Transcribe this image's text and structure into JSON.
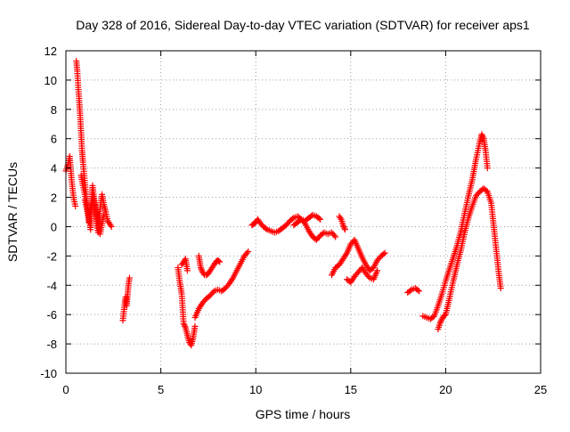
{
  "chart_data": {
    "type": "scatter",
    "title": "Day 328 of 2016, Sidereal Day-to-day VTEC variation (SDTVAR) for receiver aps1",
    "xlabel": "GPS time / hours",
    "ylabel": "SDTVAR / TECUs",
    "xlim": [
      0,
      25
    ],
    "ylim": [
      -10,
      12
    ],
    "xticks": [
      0,
      5,
      10,
      15,
      20,
      25
    ],
    "yticks": [
      -10,
      -8,
      -6,
      -4,
      -2,
      0,
      2,
      4,
      6,
      8,
      10,
      12
    ],
    "grid": true,
    "marker": "plus",
    "color": "#ff0000",
    "series": [
      {
        "name": "SDTVAR",
        "segments": [
          {
            "x": [
              0.0,
              0.1,
              0.2,
              0.3,
              0.4,
              0.5
            ],
            "y": [
              3.8,
              4.2,
              4.8,
              3.2,
              2.0,
              1.4
            ]
          },
          {
            "x": [
              0.55,
              0.6,
              0.65,
              0.7,
              0.75,
              0.8,
              0.85,
              0.9,
              1.0,
              1.1,
              1.2
            ],
            "y": [
              11.3,
              10.6,
              9.5,
              8.6,
              7.6,
              6.4,
              5.2,
              4.4,
              3.0,
              1.6,
              0.3
            ]
          },
          {
            "x": [
              0.8,
              0.9,
              1.0,
              1.1,
              1.2,
              1.3,
              1.4,
              1.5,
              1.6,
              1.7,
              1.8,
              1.9,
              2.0,
              2.1,
              2.2,
              2.3,
              2.4
            ],
            "y": [
              3.5,
              2.8,
              2.2,
              1.5,
              0.8,
              -0.2,
              2.8,
              1.8,
              0.5,
              -0.4,
              1.2,
              2.2,
              1.5,
              1.0,
              0.4,
              0.2,
              0.0
            ]
          },
          {
            "x": [
              1.0,
              1.2,
              1.4,
              1.6,
              1.8,
              2.0
            ],
            "y": [
              1.8,
              0.6,
              2.2,
              1.0,
              -0.5,
              0.8
            ]
          },
          {
            "x": [
              3.0,
              3.05,
              3.1,
              3.15,
              3.2,
              3.25,
              3.3,
              3.35
            ],
            "y": [
              -6.4,
              -5.8,
              -5.2,
              -4.8,
              -5.4,
              -4.6,
              -3.9,
              -3.5
            ]
          },
          {
            "x": [
              5.9,
              6.0,
              6.1,
              6.2,
              6.3,
              6.4,
              6.5,
              6.6,
              6.7,
              6.8
            ],
            "y": [
              -2.8,
              -3.8,
              -4.6,
              -6.6,
              -6.9,
              -7.4,
              -7.9,
              -8.1,
              -7.6,
              -6.8
            ]
          },
          {
            "x": [
              6.1,
              6.2,
              6.3,
              6.4
            ],
            "y": [
              -2.6,
              -2.4,
              -2.2,
              -3.0
            ]
          },
          {
            "x": [
              6.8,
              7.0,
              7.2,
              7.4,
              7.6,
              7.8,
              8.0,
              8.2,
              8.4,
              8.6,
              8.8,
              9.0,
              9.2,
              9.4,
              9.6
            ],
            "y": [
              -6.2,
              -5.6,
              -5.2,
              -4.9,
              -4.7,
              -4.4,
              -4.3,
              -4.4,
              -4.2,
              -3.9,
              -3.5,
              -3.0,
              -2.5,
              -2.0,
              -1.7
            ]
          },
          {
            "x": [
              7.0,
              7.1,
              7.2,
              7.3,
              7.4,
              7.5,
              7.6,
              7.7,
              7.8,
              7.9,
              8.0,
              8.1
            ],
            "y": [
              -2.0,
              -2.8,
              -3.1,
              -3.3,
              -3.3,
              -3.2,
              -3.0,
              -2.8,
              -2.6,
              -2.4,
              -2.3,
              -2.4
            ]
          },
          {
            "x": [
              9.8,
              9.9,
              10.0,
              10.1,
              10.2,
              10.4,
              10.6,
              10.8,
              11.0,
              11.2,
              11.4,
              11.6,
              11.8,
              12.0,
              12.2,
              12.4,
              12.6,
              12.8,
              13.0,
              13.2,
              13.4
            ],
            "y": [
              0.1,
              0.2,
              0.3,
              0.5,
              0.3,
              0.0,
              -0.2,
              -0.3,
              -0.4,
              -0.3,
              -0.1,
              0.1,
              0.4,
              0.6,
              0.7,
              0.5,
              0.4,
              0.6,
              0.8,
              0.7,
              0.5
            ]
          },
          {
            "x": [
              12.0,
              12.2,
              12.4,
              12.6,
              12.8,
              13.0,
              13.2,
              13.4,
              13.6,
              13.8,
              14.0,
              14.2
            ],
            "y": [
              0.1,
              0.3,
              0.5,
              0.2,
              -0.3,
              -0.7,
              -0.9,
              -0.6,
              -0.4,
              -0.5,
              -0.4,
              -0.7
            ]
          },
          {
            "x": [
              14.4,
              14.5,
              14.6,
              14.7
            ],
            "y": [
              0.7,
              0.5,
              0.1,
              -0.2
            ]
          },
          {
            "x": [
              14.0,
              14.2,
              14.4,
              14.6,
              14.8,
              15.0,
              15.2,
              15.4,
              15.6,
              15.8,
              16.0,
              16.2,
              16.4,
              16.6,
              16.8
            ],
            "y": [
              -3.3,
              -2.8,
              -2.6,
              -2.2,
              -1.8,
              -1.2,
              -0.9,
              -1.5,
              -2.1,
              -2.6,
              -3.0,
              -2.8,
              -2.3,
              -2.0,
              -1.8
            ]
          },
          {
            "x": [
              14.8,
              15.0,
              15.2,
              15.6,
              15.8,
              16.0,
              16.2,
              16.4
            ],
            "y": [
              -3.6,
              -3.8,
              -3.4,
              -2.8,
              -3.2,
              -3.5,
              -3.6,
              -3.0
            ]
          },
          {
            "x": [
              18.0,
              18.2,
              18.4,
              18.6
            ],
            "y": [
              -4.5,
              -4.3,
              -4.2,
              -4.4
            ]
          },
          {
            "x": [
              18.8,
              19.0,
              19.2,
              19.4,
              19.6,
              19.8,
              20.0,
              20.2,
              20.4,
              20.6,
              20.8,
              21.0,
              21.2,
              21.4,
              21.6,
              21.8,
              21.9,
              22.0,
              22.1,
              22.2
            ],
            "y": [
              -6.1,
              -6.2,
              -6.3,
              -6.1,
              -5.4,
              -4.6,
              -3.7,
              -2.9,
              -2.1,
              -1.3,
              -0.3,
              0.9,
              2.1,
              3.2,
              4.6,
              5.8,
              6.3,
              6.0,
              5.2,
              4.0
            ]
          },
          {
            "x": [
              19.6,
              19.7,
              19.8,
              19.9,
              20.0,
              20.2,
              20.4,
              20.6,
              20.8,
              21.0,
              21.2,
              21.4,
              21.6,
              21.8,
              22.0,
              22.2,
              22.4,
              22.5,
              22.6,
              22.7,
              22.8,
              22.9
            ],
            "y": [
              -7.0,
              -6.6,
              -6.3,
              -6.1,
              -6.0,
              -4.9,
              -3.7,
              -2.6,
              -1.6,
              -0.4,
              0.6,
              1.4,
              2.1,
              2.4,
              2.6,
              2.4,
              1.6,
              0.4,
              -0.8,
              -2.0,
              -3.2,
              -4.2
            ]
          }
        ]
      }
    ]
  }
}
